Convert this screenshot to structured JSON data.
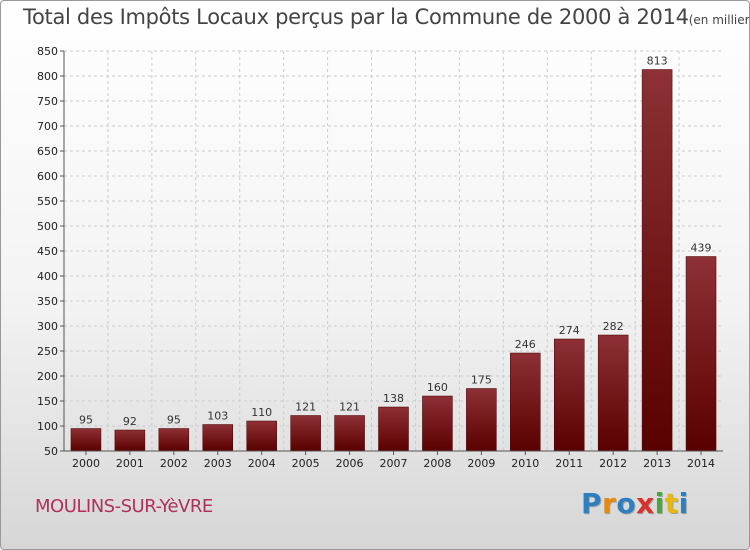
{
  "title": "Total des Impôts Locaux perçus par la Commune de 2000 à 2014",
  "unit": "(en milliers d'€)",
  "commune": "MOULINS-SUR-YèVRE",
  "logo": {
    "letters": [
      "P",
      "r",
      "o",
      "x",
      "i",
      "t",
      "i"
    ],
    "colors": [
      "#2e7fc0",
      "#e8890c",
      "#2e7fc0",
      "#d8322a",
      "#4aa83a",
      "#e8b80c",
      "#2e7fc0"
    ]
  },
  "colors": {
    "bar_dark": "#5a0000",
    "bar_light": "#8e3035",
    "grid": "#cccccc",
    "axis_text": "#222222"
  },
  "chart_data": {
    "type": "bar",
    "categories": [
      "2000",
      "2001",
      "2002",
      "2003",
      "2004",
      "2005",
      "2006",
      "2007",
      "2008",
      "2009",
      "2010",
      "2011",
      "2012",
      "2013",
      "2014"
    ],
    "values": [
      95,
      92,
      95,
      103,
      110,
      121,
      121,
      138,
      160,
      175,
      246,
      274,
      282,
      813,
      439
    ],
    "ylim": [
      50,
      850
    ],
    "yticks": [
      50,
      100,
      150,
      200,
      250,
      300,
      350,
      400,
      450,
      500,
      550,
      600,
      650,
      700,
      750,
      800,
      850
    ],
    "xlabel": "",
    "ylabel": "",
    "grid": "horizontal-dashed"
  }
}
